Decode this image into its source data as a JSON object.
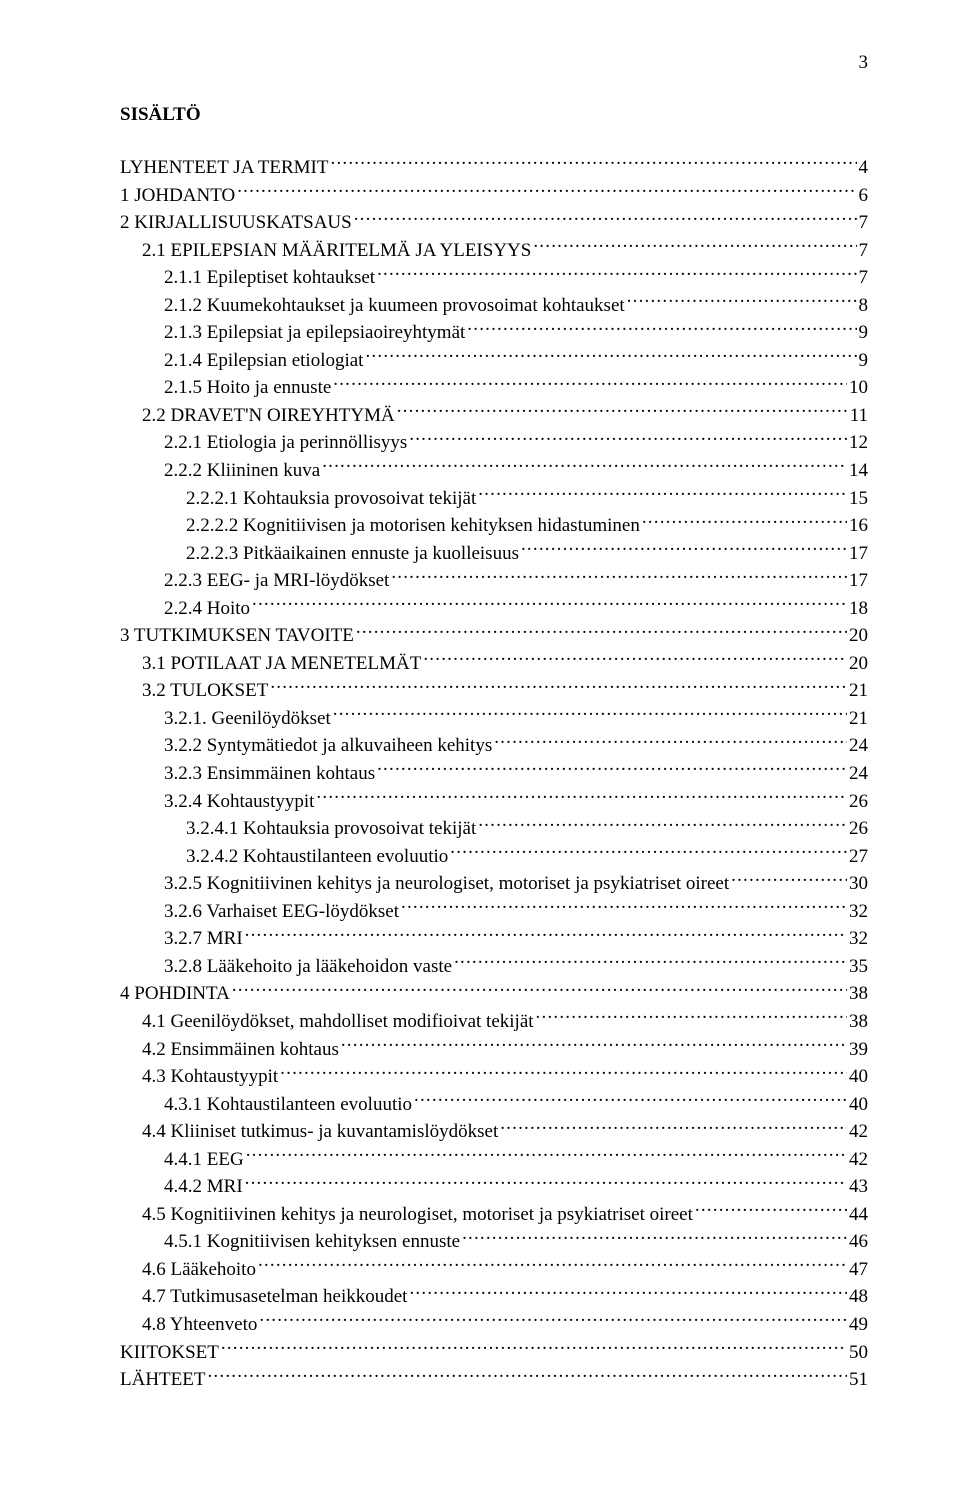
{
  "page_number": "3",
  "title": "SISÄLTÖ",
  "toc": [
    {
      "label": "LYHENTEET JA TERMIT",
      "page": "4",
      "level": 0
    },
    {
      "label": "1 JOHDANTO",
      "page": "6",
      "level": 0
    },
    {
      "label": "2 KIRJALLISUUSKATSAUS",
      "page": "7",
      "level": 0
    },
    {
      "label": "2.1 EPILEPSIAN MÄÄRITELMÄ JA YLEISYYS",
      "page": "7",
      "level": 1
    },
    {
      "label": "2.1.1 Epileptiset kohtaukset",
      "page": "7",
      "level": 2
    },
    {
      "label": "2.1.2 Kuumekohtaukset ja kuumeen provosoimat kohtaukset",
      "page": "8",
      "level": 2
    },
    {
      "label": "2.1.3 Epilepsiat ja epilepsiaoireyhtymät",
      "page": "9",
      "level": 2
    },
    {
      "label": "2.1.4 Epilepsian etiologiat",
      "page": "9",
      "level": 2
    },
    {
      "label": "2.1.5 Hoito ja ennuste",
      "page": "10",
      "level": 2
    },
    {
      "label": "2.2 DRAVET'N OIREYHTYMÄ",
      "page": "11",
      "level": 1
    },
    {
      "label": "2.2.1 Etiologia ja perinnöllisyys",
      "page": "12",
      "level": 2
    },
    {
      "label": "2.2.2 Kliininen kuva",
      "page": "14",
      "level": 2
    },
    {
      "label": "2.2.2.1 Kohtauksia provosoivat tekijät",
      "page": "15",
      "level": 3
    },
    {
      "label": "2.2.2.2 Kognitiivisen ja motorisen kehityksen hidastuminen",
      "page": "16",
      "level": 3
    },
    {
      "label": "2.2.2.3 Pitkäaikainen ennuste ja kuolleisuus",
      "page": "17",
      "level": 3
    },
    {
      "label": "2.2.3 EEG- ja MRI-löydökset",
      "page": "17",
      "level": 2
    },
    {
      "label": "2.2.4 Hoito",
      "page": "18",
      "level": 2
    },
    {
      "label": "3 TUTKIMUKSEN TAVOITE",
      "page": "20",
      "level": 0
    },
    {
      "label": "3.1 POTILAAT JA MENETELMÄT",
      "page": "20",
      "level": 1
    },
    {
      "label": "3.2 TULOKSET",
      "page": "21",
      "level": 1
    },
    {
      "label": "3.2.1. Geenilöydökset",
      "page": "21",
      "level": 2
    },
    {
      "label": "3.2.2 Syntymätiedot ja alkuvaiheen kehitys",
      "page": "24",
      "level": 2
    },
    {
      "label": "3.2.3 Ensimmäinen kohtaus",
      "page": "24",
      "level": 2
    },
    {
      "label": "3.2.4 Kohtaustyypit",
      "page": "26",
      "level": 2
    },
    {
      "label": "3.2.4.1 Kohtauksia provosoivat tekijät",
      "page": "26",
      "level": 3
    },
    {
      "label": "3.2.4.2 Kohtaustilanteen evoluutio",
      "page": "27",
      "level": 3
    },
    {
      "label": "3.2.5 Kognitiivinen kehitys ja neurologiset, motoriset ja psykiatriset oireet",
      "page": "30",
      "level": 2
    },
    {
      "label": "3.2.6 Varhaiset EEG-löydökset",
      "page": "32",
      "level": 2
    },
    {
      "label": "3.2.7 MRI",
      "page": "32",
      "level": 2
    },
    {
      "label": "3.2.8 Lääkehoito ja lääkehoidon vaste",
      "page": "35",
      "level": 2
    },
    {
      "label": "4 POHDINTA",
      "page": "38",
      "level": 0
    },
    {
      "label": "4.1 Geenilöydökset, mahdolliset modifioivat tekijät",
      "page": "38",
      "level": 1
    },
    {
      "label": "4.2 Ensimmäinen kohtaus",
      "page": "39",
      "level": 1
    },
    {
      "label": "4.3 Kohtaustyypit",
      "page": "40",
      "level": 1
    },
    {
      "label": "4.3.1 Kohtaustilanteen evoluutio",
      "page": "40",
      "level": 2
    },
    {
      "label": "4.4 Kliiniset tutkimus- ja kuvantamislöydökset",
      "page": "42",
      "level": 1
    },
    {
      "label": "4.4.1 EEG",
      "page": "42",
      "level": 2
    },
    {
      "label": "4.4.2 MRI",
      "page": "43",
      "level": 2
    },
    {
      "label": "4.5 Kognitiivinen kehitys ja neurologiset, motoriset ja psykiatriset oireet",
      "page": "44",
      "level": 1
    },
    {
      "label": "4.5.1 Kognitiivisen kehityksen ennuste",
      "page": "46",
      "level": 2
    },
    {
      "label": "4.6 Lääkehoito",
      "page": "47",
      "level": 1
    },
    {
      "label": "4.7 Tutkimusasetelman heikkoudet",
      "page": "48",
      "level": 1
    },
    {
      "label": "4.8 Yhteenveto",
      "page": "49",
      "level": 1
    },
    {
      "label": "KIITOKSET",
      "page": "50",
      "level": 0
    },
    {
      "label": "LÄHTEET",
      "page": "51",
      "level": 0
    }
  ]
}
